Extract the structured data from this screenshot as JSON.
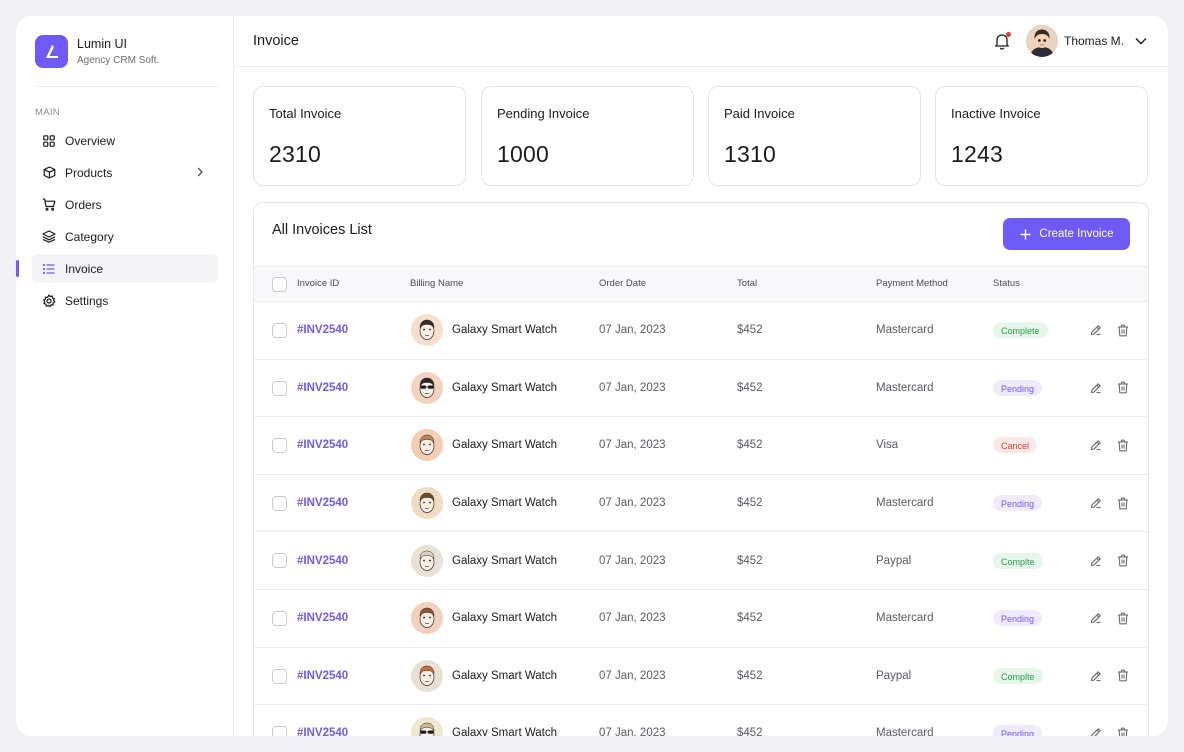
{
  "brand": {
    "name": "Lumin UI",
    "subtitle": "Agency CRM Soft."
  },
  "sidebar": {
    "section_label": "MAIN",
    "items": [
      {
        "label": "Overview",
        "icon": "grid-icon"
      },
      {
        "label": "Products",
        "icon": "box-icon"
      },
      {
        "label": "Orders",
        "icon": "cart-icon"
      },
      {
        "label": "Category",
        "icon": "layers-icon"
      },
      {
        "label": "Invoice",
        "icon": "list-icon",
        "active": true
      },
      {
        "label": "Settings",
        "icon": "gear-icon"
      }
    ]
  },
  "header": {
    "title": "Invoice",
    "user_name": "Thomas M."
  },
  "stats": [
    {
      "label": "Total Invoice",
      "value": "2310"
    },
    {
      "label": "Pending Invoice",
      "value": "1000"
    },
    {
      "label": "Paid Invoice",
      "value": "1310"
    },
    {
      "label": "Inactive Invoice",
      "value": "1243"
    }
  ],
  "table": {
    "title": "All Invoices List",
    "create_label": "Create Invoice",
    "columns": {
      "id": "Invoice ID",
      "name": "Billing Name",
      "date": "Order Date",
      "total": "Total",
      "method": "Payment Method",
      "status": "Status"
    },
    "rows": [
      {
        "id": "#INV2540",
        "name": "Galaxy Smart Watch",
        "date": "07 Jan, 2023",
        "total": "$452",
        "method": "Mastercard",
        "status": "Complete",
        "status_kind": "complete"
      },
      {
        "id": "#INV2540",
        "name": "Galaxy Smart Watch",
        "date": "07 Jan, 2023",
        "total": "$452",
        "method": "Mastercard",
        "status": "Pending",
        "status_kind": "pending"
      },
      {
        "id": "#INV2540",
        "name": "Galaxy Smart Watch",
        "date": "07 Jan, 2023",
        "total": "$452",
        "method": "Visa",
        "status": "Cancel",
        "status_kind": "cancel"
      },
      {
        "id": "#INV2540",
        "name": "Galaxy Smart Watch",
        "date": "07 Jan, 2023",
        "total": "$452",
        "method": "Mastercard",
        "status": "Pending",
        "status_kind": "pending"
      },
      {
        "id": "#INV2540",
        "name": "Galaxy Smart Watch",
        "date": "07 Jan, 2023",
        "total": "$452",
        "method": "Paypal",
        "status": "Complte",
        "status_kind": "complete"
      },
      {
        "id": "#INV2540",
        "name": "Galaxy Smart Watch",
        "date": "07 Jan, 2023",
        "total": "$452",
        "method": "Mastercard",
        "status": "Pending",
        "status_kind": "pending"
      },
      {
        "id": "#INV2540",
        "name": "Galaxy Smart Watch",
        "date": "07 Jan, 2023",
        "total": "$452",
        "method": "Paypal",
        "status": "Complte",
        "status_kind": "complete"
      },
      {
        "id": "#INV2540",
        "name": "Galaxy Smart Watch",
        "date": "07 Jan, 2023",
        "total": "$452",
        "method": "Mastercard",
        "status": "Pending",
        "status_kind": "pending"
      }
    ]
  },
  "colors": {
    "accent": "#6e5bf5",
    "complete_bg": "#e6f6ea",
    "complete_fg": "#2e9e4f",
    "pending_bg": "#eeebfd",
    "pending_fg": "#6e5bf5",
    "cancel_bg": "#fde8e8",
    "cancel_fg": "#d63b3b",
    "notification_dot": "#e53935"
  }
}
